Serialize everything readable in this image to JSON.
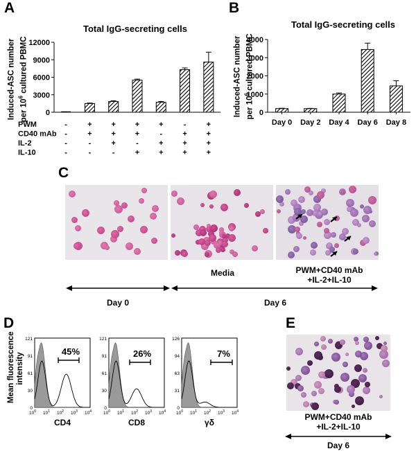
{
  "panels": {
    "A": "A",
    "B": "B",
    "C": "C",
    "D": "D",
    "E": "E"
  },
  "panel_a": {
    "title": "Total IgG-secreting cells",
    "ylabel_line1": "Induced-ASC number",
    "ylabel_line2_pre": "per 10",
    "ylabel_sup": "6",
    "ylabel_line2_post": " cultured PBMC",
    "condition_rows": [
      {
        "label": "PWM",
        "marks": [
          "-",
          "+",
          "+",
          "+",
          "+",
          "-",
          "+"
        ]
      },
      {
        "label": "CD40 mAb",
        "marks": [
          "-",
          "+",
          "+",
          "+",
          "-",
          "+",
          "+"
        ]
      },
      {
        "label": "IL-2",
        "marks": [
          "-",
          "-",
          "+",
          "-",
          "+",
          "+",
          "+"
        ]
      },
      {
        "label": "IL-10",
        "marks": [
          "-",
          "-",
          "-",
          "+",
          "+",
          "+",
          "+"
        ]
      }
    ]
  },
  "panel_b": {
    "title": "Total IgG-secreting cells",
    "ylabel_line1": "Induced-ASC number",
    "ylabel_line2_pre": "per 10",
    "ylabel_sup": "6",
    "ylabel_line2_post": " cultured PBMC"
  },
  "panel_c": {
    "media_label": "Media",
    "treat_line1": "PWM+CD40 mAb",
    "treat_line2": "+IL-2+IL-10",
    "day0_label": "Day 0",
    "day6_label": "Day 6"
  },
  "panel_d": {
    "ylabel_line1": "Mean fluorescence",
    "ylabel_line2": "intensity",
    "plots": [
      {
        "marker": "CD4",
        "percent": "45%",
        "ymax": "121",
        "yticks": [
          "121",
          "91",
          "61",
          "30",
          "0"
        ]
      },
      {
        "marker": "CD8",
        "percent": "26%",
        "ymax": "121",
        "yticks": [
          "121",
          "91",
          "61",
          "30",
          "0"
        ]
      },
      {
        "marker": "γδ",
        "percent": "7%",
        "ymax": "126",
        "yticks": [
          "126",
          "94",
          "63",
          "31",
          "0"
        ]
      }
    ],
    "xticks": [
      "10",
      "10",
      "10",
      "10",
      "10"
    ],
    "xtick_exps": [
      "0",
      "1",
      "2",
      "3",
      "4"
    ]
  },
  "panel_e": {
    "treat_line1": "PWM+CD40 mAb",
    "treat_line2": "+IL-2+IL-10",
    "day_label": "Day 6"
  },
  "colors": {
    "bar_hatch": "#000000",
    "histogram_fill": "#9a9a9a",
    "stain": "#c0468e",
    "background_micro": "#e6e2e6"
  },
  "chart_data": [
    {
      "type": "bar",
      "title": "Total IgG-secreting cells",
      "ylabel": "Induced-ASC number per 10^6 cultured PBMC",
      "categories": [
        "1",
        "2",
        "3",
        "4",
        "5",
        "6",
        "7"
      ],
      "values": [
        0,
        1500,
        1850,
        5500,
        1700,
        7300,
        8600
      ],
      "errors": [
        0,
        80,
        120,
        180,
        150,
        300,
        1700
      ],
      "ylim": [
        0,
        12000
      ],
      "yticks": [
        0,
        3000,
        6000,
        9000,
        12000
      ]
    },
    {
      "type": "bar",
      "title": "Total IgG-secreting cells",
      "ylabel": "Induced-ASC number per 10^6 cultured PBMC",
      "categories": [
        "Day 0",
        "Day 2",
        "Day 4",
        "Day 6",
        "Day 8"
      ],
      "values": [
        200,
        200,
        1000,
        3450,
        1450
      ],
      "errors": [
        20,
        15,
        60,
        350,
        280
      ],
      "ylim": [
        0,
        4000
      ],
      "yticks": [
        0,
        1000,
        2000,
        3000,
        4000
      ]
    }
  ]
}
